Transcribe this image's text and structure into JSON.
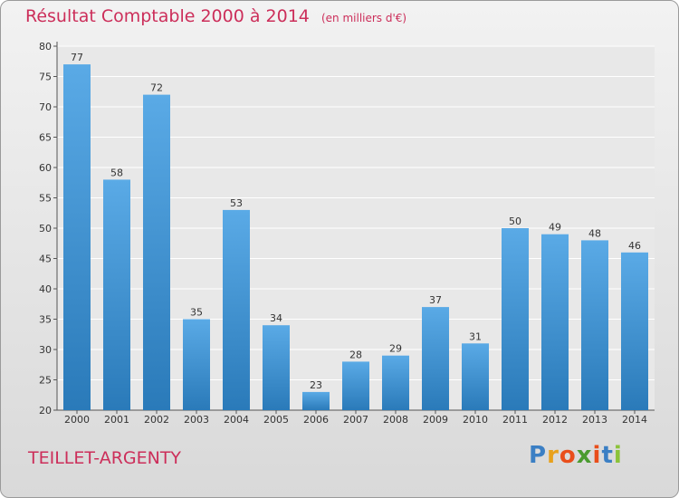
{
  "header": {
    "title": "Résultat Comptable 2000 à 2014",
    "unit": "(en milliers d'€)"
  },
  "footer": {
    "place": "TEILLET-ARGENTY",
    "logo": {
      "letters": [
        "P",
        "r",
        "o",
        "x",
        "i",
        "t",
        "i"
      ],
      "colors": [
        "#3b7fc4",
        "#e8a11c",
        "#e94e1b",
        "#4a9b2f",
        "#e94e1b",
        "#3b7fc4",
        "#8bc33a"
      ]
    }
  },
  "colors": {
    "bar_top": "#5aaae6",
    "bar_bottom": "#2a7ab9",
    "title": "#cc2e5a"
  },
  "chart_data": {
    "type": "bar",
    "title": "Résultat Comptable 2000 à 2014",
    "subtitle": "(en milliers d'€)",
    "categories": [
      "2000",
      "2001",
      "2002",
      "2003",
      "2004",
      "2005",
      "2006",
      "2007",
      "2008",
      "2009",
      "2010",
      "2011",
      "2012",
      "2013",
      "2014"
    ],
    "values": [
      77,
      58,
      72,
      35,
      53,
      34,
      23,
      28,
      29,
      37,
      31,
      50,
      49,
      48,
      46
    ],
    "ylim": [
      20,
      80
    ],
    "yticks": [
      20,
      25,
      30,
      35,
      40,
      45,
      50,
      55,
      60,
      65,
      70,
      75,
      80
    ],
    "grid": true,
    "data_labels": true
  }
}
